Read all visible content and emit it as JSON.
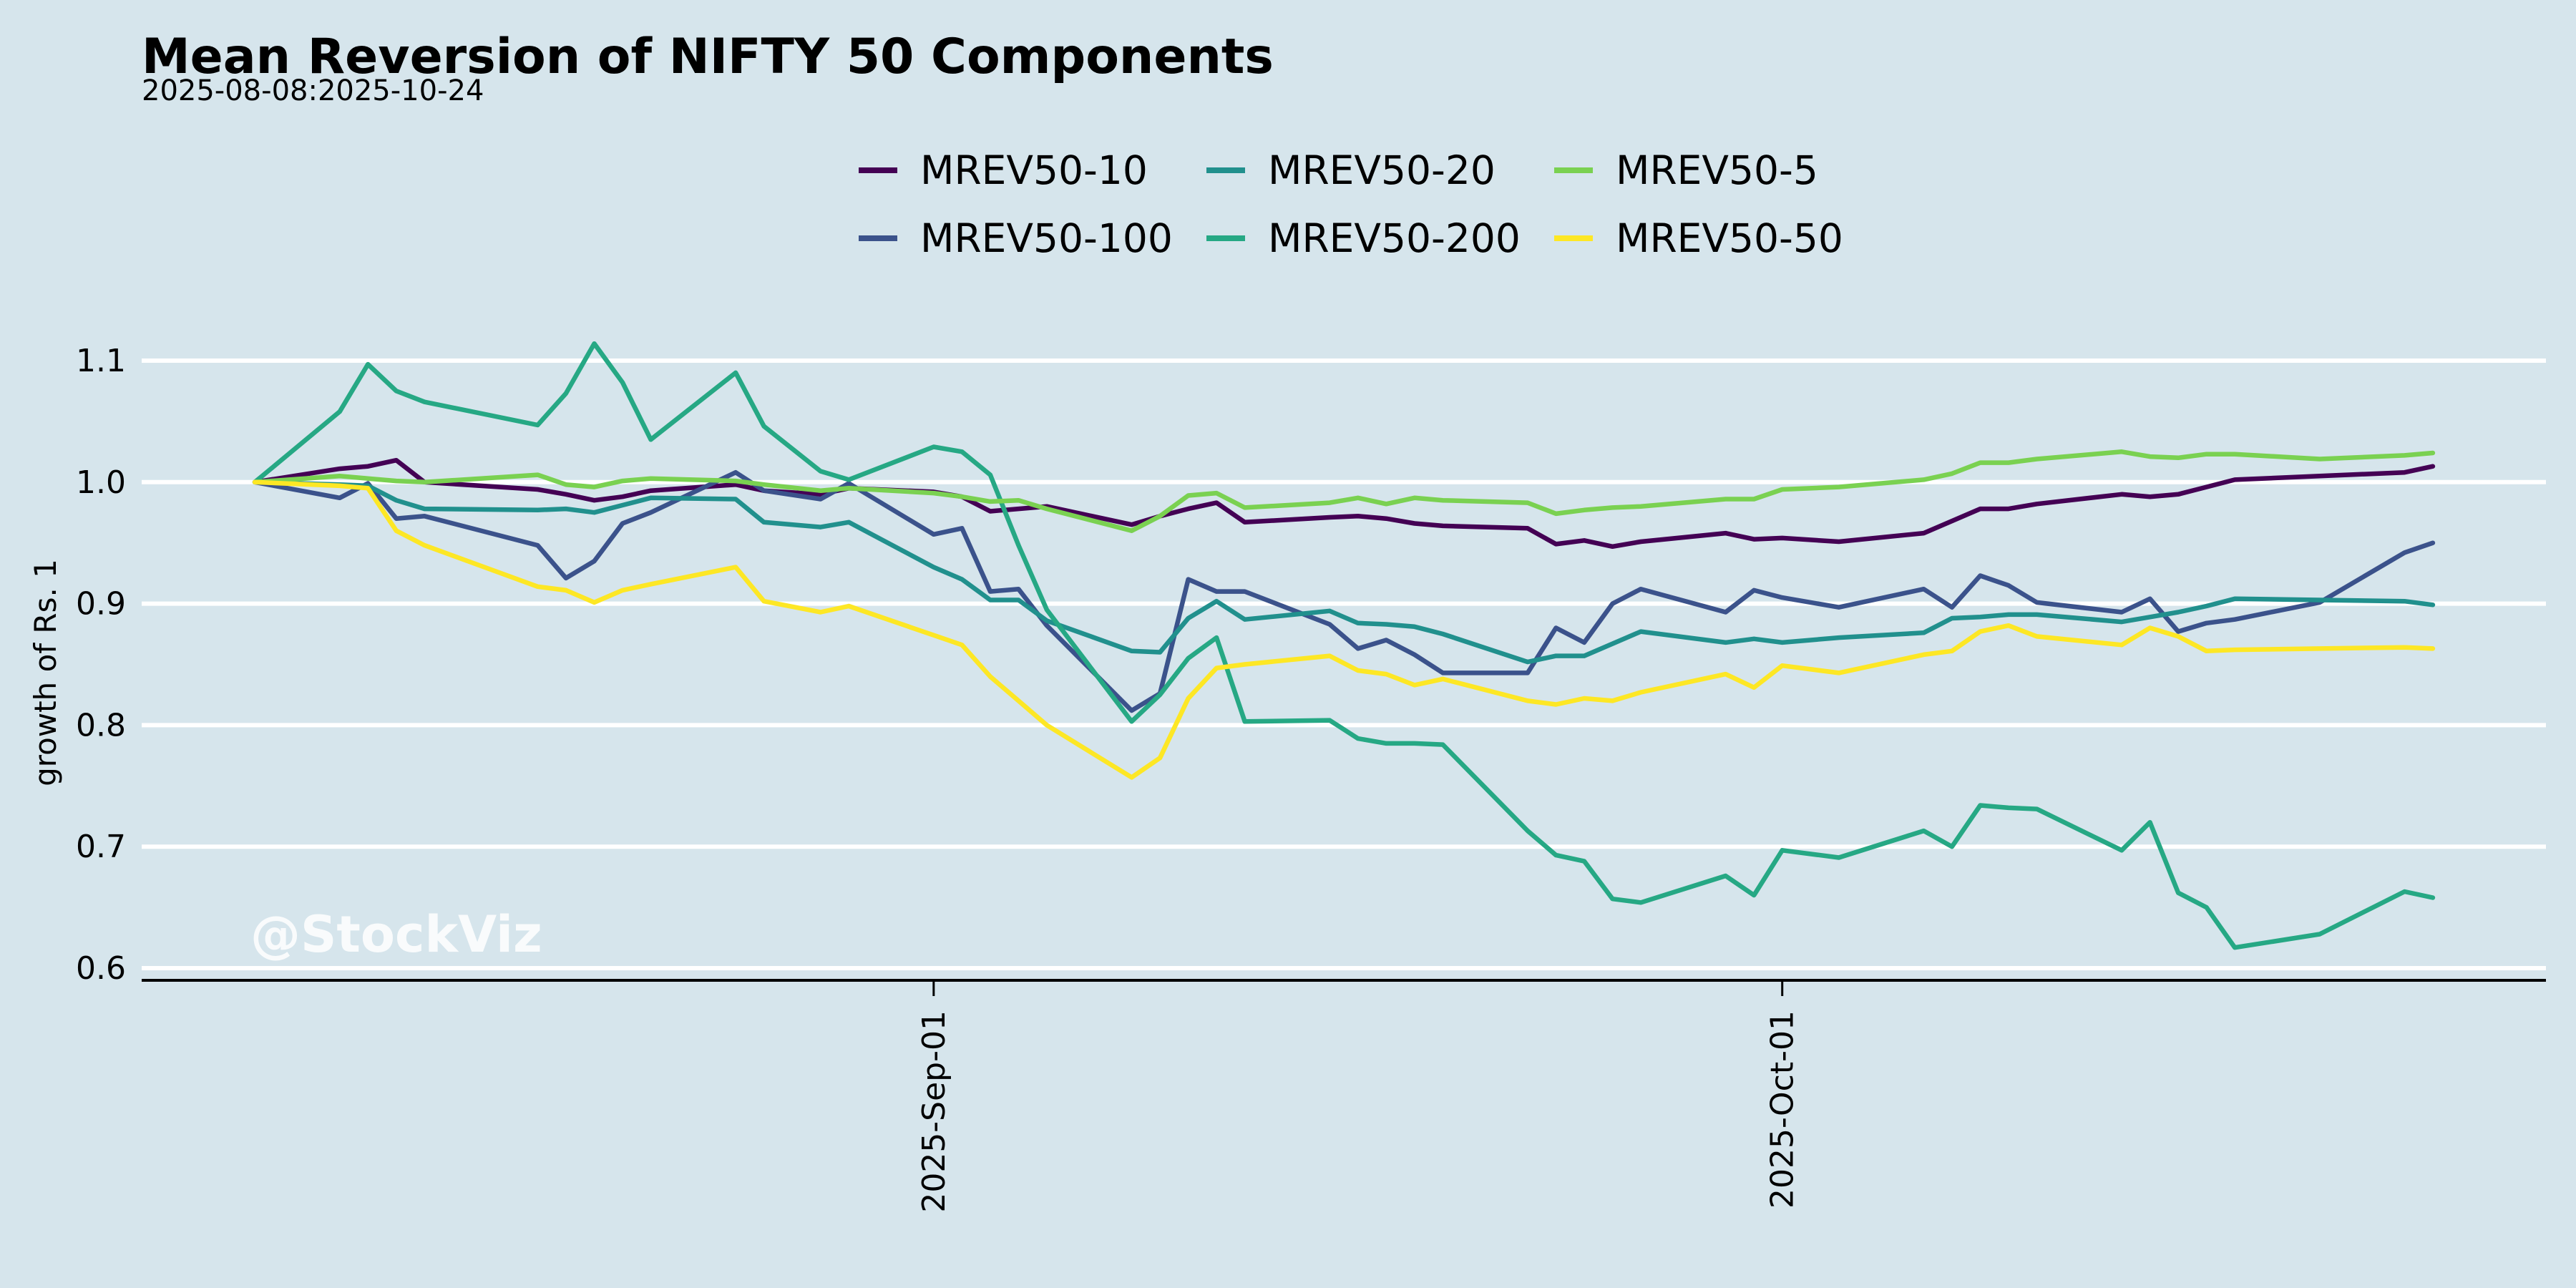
{
  "chart_data": {
    "type": "line",
    "title": "Mean Reversion of NIFTY 50 Components",
    "subtitle": "2025-08-08:2025-10-24",
    "xlabel": "",
    "ylabel": "growth of Rs. 1",
    "ylim": [
      0.59,
      1.12
    ],
    "yticks": [
      0.6,
      0.7,
      0.8,
      0.9,
      1.0,
      1.1
    ],
    "ytick_labels": [
      "0.6",
      "0.7",
      "0.8",
      "0.9",
      "1.0",
      "1.1"
    ],
    "xlim": [
      "2025-08-04",
      "2025-10-28"
    ],
    "xticks": [
      "2025-09-01",
      "2025-10-01"
    ],
    "xtick_labels": [
      "2025-Sep-01",
      "2025-Oct-01"
    ],
    "grid": "horizontal",
    "legend_position": "top-center",
    "watermark": "@StockViz",
    "x": [
      "2025-08-08",
      "2025-08-11",
      "2025-08-12",
      "2025-08-13",
      "2025-08-14",
      "2025-08-18",
      "2025-08-19",
      "2025-08-20",
      "2025-08-21",
      "2025-08-22",
      "2025-08-25",
      "2025-08-26",
      "2025-08-28",
      "2025-08-29",
      "2025-09-01",
      "2025-09-02",
      "2025-09-03",
      "2025-09-04",
      "2025-09-05",
      "2025-09-08",
      "2025-09-09",
      "2025-09-10",
      "2025-09-11",
      "2025-09-12",
      "2025-09-15",
      "2025-09-16",
      "2025-09-17",
      "2025-09-18",
      "2025-09-19",
      "2025-09-22",
      "2025-09-23",
      "2025-09-24",
      "2025-09-25",
      "2025-09-26",
      "2025-09-29",
      "2025-09-30",
      "2025-10-01",
      "2025-10-03",
      "2025-10-06",
      "2025-10-07",
      "2025-10-08",
      "2025-10-09",
      "2025-10-10",
      "2025-10-13",
      "2025-10-14",
      "2025-10-15",
      "2025-10-16",
      "2025-10-17",
      "2025-10-20",
      "2025-10-23",
      "2025-10-24"
    ],
    "series": [
      {
        "name": "MREV50-10",
        "color": "#440154",
        "values": [
          1.0,
          1.011,
          1.013,
          1.018,
          1.0,
          0.994,
          0.99,
          0.985,
          0.988,
          0.993,
          0.998,
          0.993,
          0.99,
          0.995,
          0.992,
          0.988,
          0.976,
          0.978,
          0.98,
          0.965,
          0.972,
          0.978,
          0.983,
          0.967,
          0.971,
          0.972,
          0.97,
          0.966,
          0.964,
          0.962,
          0.949,
          0.952,
          0.947,
          0.951,
          0.958,
          0.953,
          0.954,
          0.951,
          0.958,
          0.968,
          0.978,
          0.978,
          0.982,
          0.99,
          0.988,
          0.99,
          0.996,
          1.002,
          1.005,
          1.008,
          1.013
        ]
      },
      {
        "name": "MREV50-100",
        "color": "#3b528b",
        "values": [
          1.0,
          0.987,
          0.999,
          0.97,
          0.972,
          0.948,
          0.921,
          0.935,
          0.966,
          0.975,
          1.008,
          0.993,
          0.986,
          0.999,
          0.957,
          0.962,
          0.91,
          0.912,
          0.882,
          0.812,
          0.826,
          0.92,
          0.91,
          0.91,
          0.883,
          0.863,
          0.87,
          0.858,
          0.843,
          0.843,
          0.88,
          0.868,
          0.9,
          0.912,
          0.893,
          0.911,
          0.905,
          0.897,
          0.912,
          0.897,
          0.923,
          0.915,
          0.901,
          0.893,
          0.904,
          0.877,
          0.884,
          0.887,
          0.901,
          0.942,
          0.95
        ]
      },
      {
        "name": "MREV50-20",
        "color": "#21908d",
        "values": [
          1.0,
          0.998,
          0.997,
          0.985,
          0.978,
          0.977,
          0.978,
          0.975,
          0.981,
          0.987,
          0.986,
          0.967,
          0.963,
          0.967,
          0.93,
          0.92,
          0.903,
          0.903,
          0.886,
          0.861,
          0.86,
          0.888,
          0.902,
          0.887,
          0.894,
          0.884,
          0.883,
          0.881,
          0.875,
          0.852,
          0.857,
          0.857,
          0.867,
          0.877,
          0.868,
          0.871,
          0.868,
          0.872,
          0.876,
          0.888,
          0.889,
          0.891,
          0.891,
          0.885,
          0.889,
          0.893,
          0.898,
          0.904,
          0.903,
          0.902,
          0.899
        ]
      },
      {
        "name": "MREV50-200",
        "color": "#26a884",
        "values": [
          1.0,
          1.058,
          1.097,
          1.075,
          1.066,
          1.047,
          1.073,
          1.114,
          1.082,
          1.035,
          1.09,
          1.046,
          1.009,
          1.002,
          1.029,
          1.025,
          1.006,
          0.948,
          0.895,
          0.803,
          0.825,
          0.855,
          0.872,
          0.803,
          0.804,
          0.789,
          0.785,
          0.785,
          0.784,
          0.713,
          0.693,
          0.688,
          0.657,
          0.654,
          0.676,
          0.66,
          0.697,
          0.691,
          0.713,
          0.7,
          0.734,
          0.732,
          0.731,
          0.697,
          0.72,
          0.662,
          0.65,
          0.617,
          0.628,
          0.663,
          0.658
        ]
      },
      {
        "name": "MREV50-5",
        "color": "#7ad151",
        "values": [
          1.0,
          1.005,
          1.003,
          1.001,
          1.0,
          1.006,
          0.998,
          0.996,
          1.001,
          1.003,
          1.001,
          0.998,
          0.993,
          0.995,
          0.991,
          0.988,
          0.984,
          0.985,
          0.978,
          0.96,
          0.972,
          0.989,
          0.991,
          0.979,
          0.983,
          0.987,
          0.982,
          0.987,
          0.985,
          0.983,
          0.974,
          0.977,
          0.979,
          0.98,
          0.986,
          0.986,
          0.994,
          0.996,
          1.002,
          1.007,
          1.016,
          1.016,
          1.019,
          1.025,
          1.021,
          1.02,
          1.023,
          1.023,
          1.019,
          1.022,
          1.024
        ]
      },
      {
        "name": "MREV50-50",
        "color": "#fde725",
        "values": [
          1.0,
          0.997,
          0.995,
          0.96,
          0.948,
          0.914,
          0.911,
          0.901,
          0.911,
          0.916,
          0.93,
          0.902,
          0.893,
          0.898,
          0.874,
          0.866,
          0.84,
          0.82,
          0.8,
          0.757,
          0.773,
          0.822,
          0.847,
          0.85,
          0.857,
          0.845,
          0.842,
          0.833,
          0.838,
          0.82,
          0.817,
          0.822,
          0.82,
          0.827,
          0.842,
          0.831,
          0.849,
          0.843,
          0.858,
          0.861,
          0.877,
          0.882,
          0.873,
          0.866,
          0.88,
          0.873,
          0.861,
          0.862,
          0.863,
          0.864,
          0.863
        ]
      }
    ]
  }
}
